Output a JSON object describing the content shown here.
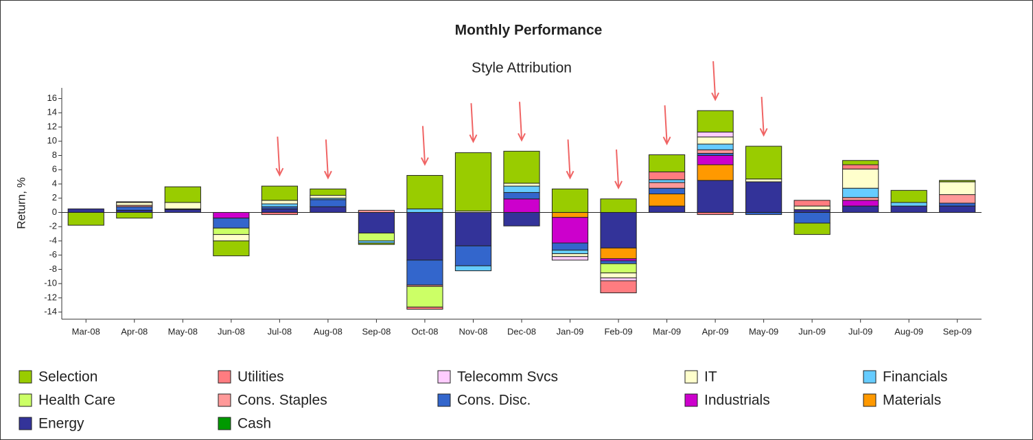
{
  "chart_data": {
    "type": "bar",
    "stacked": true,
    "title": "Monthly Performance",
    "subtitle": "Style Attribution",
    "y_label": "Return, %",
    "categories": [
      "Mar-08",
      "Apr-08",
      "May-08",
      "Jun-08",
      "Jul-08",
      "Aug-08",
      "Sep-08",
      "Oct-08",
      "Nov-08",
      "Dec-08",
      "Jan-09",
      "Feb-09",
      "Mar-09",
      "Apr-09",
      "May-09",
      "Jun-09",
      "Jul-09",
      "Aug-09",
      "Sep-09"
    ],
    "ylim": [
      -15,
      17.5
    ],
    "yticks": [
      -14,
      -12,
      -10,
      -8,
      -6,
      -4,
      -2,
      0,
      2,
      4,
      6,
      8,
      10,
      12,
      14,
      16
    ],
    "series": [
      {
        "name": "Selection",
        "color": "#99cc00",
        "values": [
          -1.8,
          -0.8,
          2.2,
          -2.1,
          2.0,
          0.9,
          -0.2,
          4.7,
          8.2,
          4.5,
          3.3,
          1.9,
          2.4,
          3.0,
          4.6,
          -1.6,
          0.6,
          1.7,
          0.2
        ]
      },
      {
        "name": "Utilities",
        "color": "#ff7c80",
        "values": [
          0,
          0.1,
          0,
          0,
          -0.3,
          0,
          0,
          -0.3,
          0,
          0,
          0,
          -1.7,
          1.1,
          -0.3,
          0,
          0.8,
          0.6,
          0,
          0
        ]
      },
      {
        "name": "Telecomm Svcs",
        "color": "#ffccff",
        "values": [
          0,
          0,
          0,
          0,
          0,
          0,
          0,
          0,
          0,
          0,
          -0.5,
          -0.4,
          0,
          0.7,
          0,
          0,
          0,
          0,
          0
        ]
      },
      {
        "name": "IT",
        "color": "#ffffcc",
        "values": [
          0,
          0.4,
          0.9,
          -0.9,
          0.5,
          0.4,
          0,
          0,
          0.2,
          0.4,
          -0.4,
          -0.7,
          0,
          1.0,
          0.4,
          0.5,
          2.7,
          0,
          1.8
        ]
      },
      {
        "name": "Financials",
        "color": "#66ccff",
        "values": [
          0,
          0,
          0.1,
          0,
          0.4,
          0.2,
          -0.3,
          0.5,
          -0.7,
          0.9,
          -0.5,
          0,
          0.4,
          0.8,
          0,
          0,
          1.3,
          0.5,
          0
        ]
      },
      {
        "name": "Health Care",
        "color": "#ccff66",
        "values": [
          0,
          0,
          0,
          -0.9,
          0,
          0,
          -1.1,
          -2.9,
          0,
          0,
          0,
          -1.3,
          0,
          0,
          0,
          0,
          0,
          0,
          0
        ]
      },
      {
        "name": "Cons. Staples",
        "color": "#ff9999",
        "values": [
          0,
          0.2,
          0,
          0,
          0,
          0,
          0.3,
          -0.2,
          0,
          0,
          0,
          0,
          0.8,
          0.5,
          0,
          0,
          0.4,
          0,
          1.2
        ]
      },
      {
        "name": "Cons. Disc.",
        "color": "#3366cc",
        "values": [
          0,
          0.5,
          0,
          -1.4,
          0.3,
          1.0,
          0,
          -3.5,
          -2.8,
          0.9,
          -1.0,
          -0.4,
          0.8,
          0.3,
          -0.3,
          -1.5,
          0,
          0,
          0.4
        ]
      },
      {
        "name": "Industrials",
        "color": "#cc00cc",
        "values": [
          0,
          0,
          0,
          -0.8,
          0,
          0,
          0,
          0,
          0,
          1.9,
          -3.6,
          -0.3,
          0,
          1.3,
          0,
          0,
          0.8,
          0,
          0
        ]
      },
      {
        "name": "Materials",
        "color": "#ff9900",
        "values": [
          0,
          0,
          0,
          0,
          0,
          0,
          0,
          0,
          0,
          0,
          -0.7,
          -1.5,
          1.7,
          2.2,
          0,
          0,
          0,
          0,
          0
        ]
      },
      {
        "name": "Energy",
        "color": "#333399",
        "values": [
          0.5,
          0.3,
          0.4,
          0,
          0.5,
          0.8,
          -2.9,
          -6.7,
          -4.7,
          -1.9,
          0,
          -5.0,
          0.9,
          4.5,
          4.3,
          0.4,
          0.9,
          0.9,
          0.9
        ]
      },
      {
        "name": "Cash",
        "color": "#009900",
        "values": [
          0,
          0,
          0,
          0,
          0,
          0,
          0,
          0,
          0,
          0,
          0,
          0,
          0,
          0,
          0,
          0,
          0,
          0,
          0
        ]
      }
    ]
  }
}
